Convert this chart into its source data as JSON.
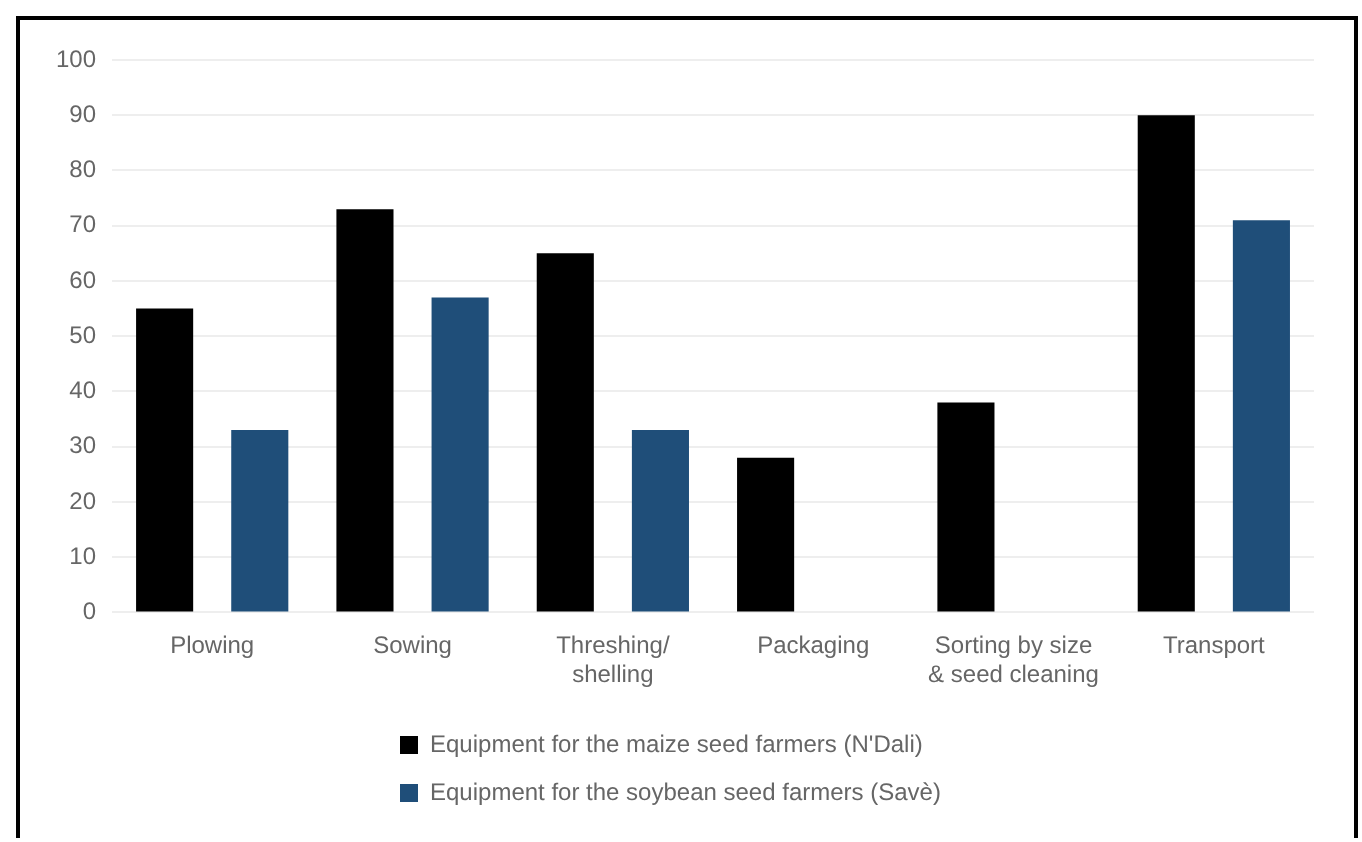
{
  "chart_data": {
    "type": "bar",
    "categories": [
      "Plowing",
      "Sowing",
      "Threshing/\nshelling",
      "Packaging",
      "Sorting by size\n& seed cleaning",
      "Transport"
    ],
    "series": [
      {
        "name": "Equipment for the maize seed farmers (N'Dali)",
        "color": "#000000",
        "values": [
          55,
          73,
          65,
          28,
          38,
          90
        ]
      },
      {
        "name": "Equipment for the soybean seed farmers (Savè)",
        "color": "#1f4e79",
        "values": [
          33,
          57,
          33,
          0,
          0,
          71
        ]
      }
    ],
    "ylim": [
      0,
      100
    ],
    "yticks": [
      0,
      10,
      20,
      30,
      40,
      50,
      60,
      70,
      80,
      90,
      100
    ],
    "grid": "y",
    "legend": "bottom"
  }
}
